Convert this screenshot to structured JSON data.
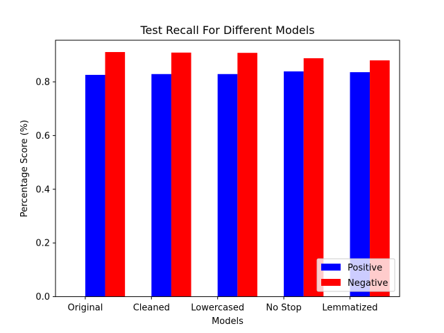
{
  "chart_data": {
    "type": "bar",
    "title": "Test Recall For Different Models",
    "xlabel": "Models",
    "ylabel": "Percentage Score (%)",
    "categories": [
      "Original",
      "Cleaned",
      "Lowercased",
      "No Stop",
      "Lemmatized"
    ],
    "series": [
      {
        "name": "Positive",
        "color": "#0000ff",
        "values": [
          0.826,
          0.829,
          0.829,
          0.839,
          0.836
        ]
      },
      {
        "name": "Negative",
        "color": "#ff0000",
        "values": [
          0.911,
          0.909,
          0.908,
          0.888,
          0.88
        ]
      }
    ],
    "ylim": [
      0,
      0.955
    ],
    "yticks": [
      0.0,
      0.2,
      0.4,
      0.6,
      0.8
    ],
    "ytick_labels": [
      "0.0",
      "0.2",
      "0.4",
      "0.6",
      "0.8"
    ],
    "grid": false,
    "legend_position": "bottom-right"
  }
}
